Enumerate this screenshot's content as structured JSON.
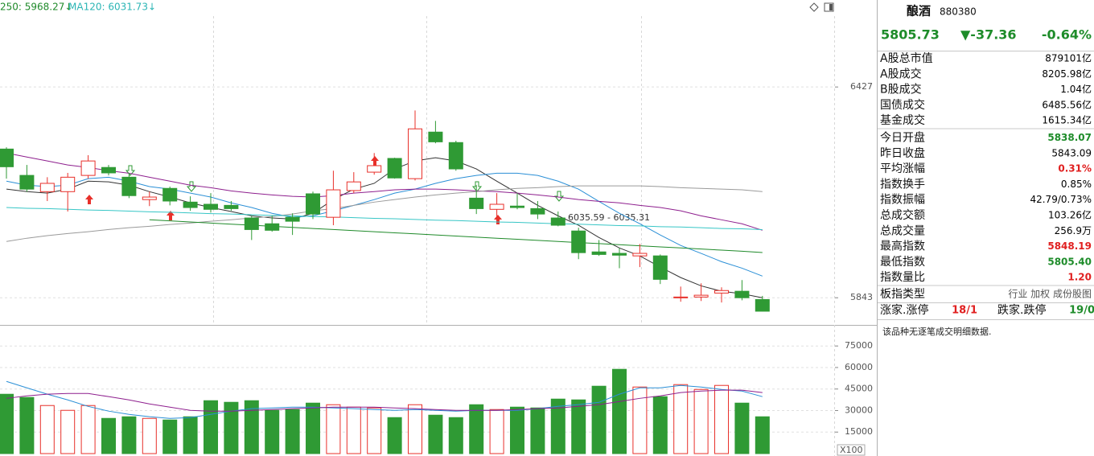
{
  "chart_data": [
    {
      "type": "candlestick",
      "legend": [
        "250: 5968.27↓",
        "MA120: 6031.73↓"
      ],
      "annotation": "6035.59 - 6035.31",
      "ylim": [
        5770,
        6668
      ],
      "yticks": [
        5843,
        6427
      ],
      "grid": true,
      "up_color": "#e8302a",
      "down_color": "#2f9a34",
      "open": [
        6255,
        6182,
        6137,
        6137,
        6182,
        6204,
        6177,
        6115,
        6146,
        6108,
        6102,
        6099,
        6064,
        6048,
        6066,
        6131,
        6066,
        6140,
        6191,
        6229,
        6173,
        6302,
        6273,
        6119,
        6088,
        6097,
        6090,
        6064,
        6028,
        5970,
        5966,
        5959,
        5959,
        5843,
        5845,
        5856,
        5861,
        5838.07
      ],
      "high": [
        6260,
        6211,
        6177,
        6189,
        6238,
        6211,
        6189,
        6137,
        6151,
        6124,
        6133,
        6111,
        6070,
        6070,
        6077,
        6137,
        6195,
        6191,
        6244,
        6231,
        6362,
        6333,
        6278,
        6155,
        6133,
        6133,
        6111,
        6082,
        6037,
        6003,
        5981,
        5992,
        5963,
        5874,
        5883,
        5872,
        5892,
        5848.19
      ],
      "low": [
        6173,
        6137,
        6111,
        6082,
        6173,
        6182,
        6119,
        6097,
        6099,
        6084,
        6079,
        6084,
        6003,
        6026,
        6017,
        6061,
        6044,
        6133,
        6184,
        6173,
        6168,
        6271,
        6195,
        6075,
        6066,
        6088,
        6061,
        6041,
        5950,
        5959,
        5925,
        5928,
        5881,
        5832,
        5834,
        5830,
        5836,
        5805.4
      ],
      "close": [
        6206,
        6144,
        6160,
        6177,
        6222,
        6189,
        6126,
        6122,
        6111,
        6093,
        6088,
        6090,
        6032,
        6030,
        6055,
        6075,
        6142,
        6164,
        6209,
        6175,
        6311,
        6275,
        6200,
        6090,
        6102,
        6093,
        6075,
        6044,
        5968,
        5963,
        5961,
        5966,
        5894,
        5845,
        5850,
        5863,
        5843.09,
        5805.73
      ],
      "lines": [
        {
          "color": "#333333",
          "values": [
            6144,
            6137,
            6133,
            6144,
            6166,
            6164,
            6155,
            6137,
            6122,
            6106,
            6093,
            6082,
            6070,
            6064,
            6061,
            6077,
            6115,
            6144,
            6160,
            6200,
            6222,
            6231,
            6222,
            6200,
            6166,
            6133,
            6099,
            6070,
            6044,
            6010,
            5981,
            5959,
            5928,
            5899,
            5876,
            5861,
            5854,
            5843
          ]
        },
        {
          "color": "#2a8fd6",
          "values": [
            6166,
            6155,
            6151,
            6155,
            6173,
            6177,
            6166,
            6151,
            6144,
            6133,
            6122,
            6106,
            6093,
            6077,
            6066,
            6070,
            6084,
            6099,
            6115,
            6133,
            6144,
            6160,
            6173,
            6182,
            6188,
            6188,
            6182,
            6166,
            6144,
            6110,
            6077,
            6048,
            6017,
            5988,
            5966,
            5943,
            5925,
            5903
          ]
        },
        {
          "color": "#8e1f8e",
          "values": [
            6244,
            6233,
            6222,
            6211,
            6204,
            6195,
            6188,
            6177,
            6166,
            6155,
            6148,
            6139,
            6133,
            6128,
            6124,
            6122,
            6126,
            6133,
            6137,
            6142,
            6144,
            6144,
            6142,
            6139,
            6137,
            6133,
            6128,
            6122,
            6115,
            6110,
            6106,
            6099,
            6093,
            6084,
            6070,
            6059,
            6048,
            6030
          ]
        },
        {
          "color": "#9a9a9a",
          "values": [
            5999,
            6008,
            6015,
            6021,
            6026,
            6032,
            6037,
            6041,
            6046,
            6050,
            6055,
            6059,
            6064,
            6068,
            6075,
            6084,
            6090,
            6099,
            6108,
            6115,
            6122,
            6128,
            6133,
            6137,
            6142,
            6146,
            6148,
            6151,
            6153,
            6153,
            6153,
            6153,
            6151,
            6148,
            6146,
            6144,
            6142,
            6137
          ]
        },
        {
          "color": "#37c6c6",
          "values": [
            6093,
            6091,
            6090,
            6088,
            6086,
            6085,
            6083,
            6081,
            6080,
            6078,
            6076,
            6075,
            6073,
            6071,
            6070,
            6068,
            6067,
            6065,
            6063,
            6062,
            6060,
            6058,
            6057,
            6055,
            6053,
            6052,
            6050,
            6048,
            6047,
            6045,
            6043,
            6042,
            6040,
            6039,
            6037,
            6035,
            6034,
            6031.73
          ]
        },
        {
          "color": "#1f8a2a",
          "values": [
            null,
            null,
            null,
            null,
            null,
            null,
            null,
            6059,
            6056,
            6053,
            6050,
            6047,
            6044,
            6041,
            6038,
            6035,
            6032,
            6029,
            6026,
            6023,
            6020,
            6017,
            6014,
            6011,
            6008,
            6005,
            6002,
            5999,
            5996,
            5993,
            5990,
            5987,
            5984,
            5981,
            5978,
            5975,
            5972,
            5968.27
          ]
        }
      ]
    },
    {
      "type": "volume",
      "unit_label": "X100",
      "ylim": [
        0,
        88000
      ],
      "yticks": [
        15000,
        30000,
        45000,
        60000,
        75000
      ],
      "grid": true,
      "values": [
        41352,
        39109,
        33502,
        30138,
        33502,
        24531,
        25652,
        24531,
        23409,
        25652,
        36866,
        35745,
        36866,
        30138,
        30698,
        35184,
        34063,
        32380,
        31820,
        25091,
        34063,
        26774,
        25091,
        34063,
        30698,
        32380,
        31820,
        37987,
        37427,
        46959,
        58733,
        46398,
        39670,
        48080,
        44716,
        47519,
        35184,
        25652
      ],
      "lines": [
        {
          "color": "#2a8fd6",
          "values": [
            50300,
            45800,
            41400,
            37400,
            32900,
            29600,
            27300,
            25700,
            24500,
            25100,
            27300,
            29600,
            31300,
            31800,
            32400,
            32400,
            31800,
            31300,
            30700,
            30100,
            30700,
            30100,
            29600,
            30100,
            30100,
            30100,
            31300,
            32900,
            34100,
            35700,
            41400,
            45800,
            45800,
            47500,
            46400,
            44700,
            43600,
            39700
          ]
        },
        {
          "color": "#8e1f8e",
          "values": [
            38500,
            40200,
            41400,
            41900,
            41900,
            39700,
            37400,
            34600,
            32400,
            30100,
            29600,
            29600,
            30100,
            30700,
            31300,
            31800,
            32400,
            32400,
            32400,
            31800,
            31300,
            30700,
            30100,
            30100,
            30100,
            30700,
            31300,
            31800,
            32900,
            34100,
            36300,
            38500,
            40200,
            42500,
            43600,
            44200,
            44200,
            42500
          ]
        }
      ]
    }
  ],
  "panel": {
    "name": "酿酒",
    "code": "880380",
    "price": "5805.73",
    "change": "▼-37.36",
    "change_pct": "-0.64%",
    "quote_color": "#1e8c2a",
    "sections": [
      [
        {
          "label": "A股总市值",
          "value": "879101亿",
          "color": "#000000"
        },
        {
          "label": "A股成交",
          "value": "8205.98亿",
          "color": "#000000"
        },
        {
          "label": "B股成交",
          "value": "1.04亿",
          "color": "#000000"
        },
        {
          "label": "国债成交",
          "value": "6485.56亿",
          "color": "#000000"
        },
        {
          "label": "基金成交",
          "value": "1615.34亿",
          "color": "#000000"
        }
      ],
      [
        {
          "label": "今日开盘",
          "value": "5838.07",
          "color": "#1e8c2a"
        },
        {
          "label": "昨日收盘",
          "value": "5843.09",
          "color": "#000000"
        },
        {
          "label": "平均涨幅",
          "value": "0.31%",
          "color": "#e02020"
        },
        {
          "label": "指数换手",
          "value": "0.85%",
          "color": "#000000"
        },
        {
          "label": "指数振幅",
          "value": "42.79/0.73%",
          "color": "#000000"
        },
        {
          "label": "总成交额",
          "value": "103.26亿",
          "color": "#000000"
        },
        {
          "label": "总成交量",
          "value": "256.9万",
          "color": "#000000"
        },
        {
          "label": "最高指数",
          "value": "5848.19",
          "color": "#e02020"
        },
        {
          "label": "最低指数",
          "value": "5805.40",
          "color": "#1e8c2a"
        },
        {
          "label": "指数量比",
          "value": "1.20",
          "color": "#e02020"
        }
      ]
    ],
    "board": {
      "label": "板指类型",
      "value": "行业 加权 成份股图"
    },
    "counts": [
      {
        "label": "涨家.涨停",
        "value": "18/1",
        "color": "#e02020"
      },
      {
        "label": "跌家.跌停",
        "value": "19/0",
        "color": "#1e8c2a"
      }
    ],
    "note": "该品种无逐笔成交明细数据."
  }
}
